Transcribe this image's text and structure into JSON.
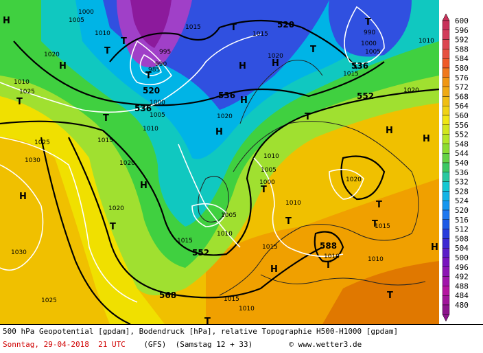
{
  "map": {
    "pressure_labels": [
      "1000",
      "1005",
      "1010",
      "1015",
      "1020",
      "1025",
      "1030",
      "990",
      "985",
      "995"
    ],
    "geo_labels": [
      "520",
      "536",
      "552",
      "568",
      "588"
    ],
    "highs": "H",
    "lows": "T",
    "colors": {
      "deep_purple": "#8c1a9c",
      "purple": "#a040c8",
      "blue": "#3050e0",
      "cyan": "#00b4e6",
      "teal": "#10c8c0",
      "green": "#40d040",
      "lime": "#a0e030",
      "yellow": "#f0e000",
      "gold": "#f0c000",
      "orange": "#f0a000",
      "dark_orange": "#e07800"
    }
  },
  "legend": {
    "values": [
      "600",
      "596",
      "592",
      "588",
      "584",
      "580",
      "576",
      "572",
      "568",
      "564",
      "560",
      "556",
      "552",
      "548",
      "544",
      "540",
      "536",
      "532",
      "528",
      "524",
      "520",
      "516",
      "512",
      "508",
      "504",
      "500",
      "496",
      "492",
      "488",
      "484",
      "480"
    ],
    "colors": [
      "#c8325a",
      "#d23c5a",
      "#dc4650",
      "#e65040",
      "#ef5a28",
      "#f0781e",
      "#f09614",
      "#f0aa14",
      "#f0be14",
      "#f0d214",
      "#f0e614",
      "#d2e61e",
      "#b4e628",
      "#8cdc32",
      "#64d246",
      "#3cc864",
      "#28c8a0",
      "#14c8d2",
      "#14b4e6",
      "#1496f0",
      "#1e78f0",
      "#1e5ae6",
      "#283cdc",
      "#3c28d2",
      "#5a1ec8",
      "#7814be",
      "#8c14b4",
      "#a014aa",
      "#b414a0",
      "#a0149a",
      "#8c148c"
    ]
  },
  "footer": {
    "line1": "500 hPa Geopotential [gpdam], Bodendruck [hPa], relative Topographie H500-H1000 [gpdam]",
    "date": "Sonntag, 29-04-2018  21 UTC",
    "model": "(GFS)  (Samstag 12 + 33)",
    "copyright": "© www.wetter3.de"
  }
}
